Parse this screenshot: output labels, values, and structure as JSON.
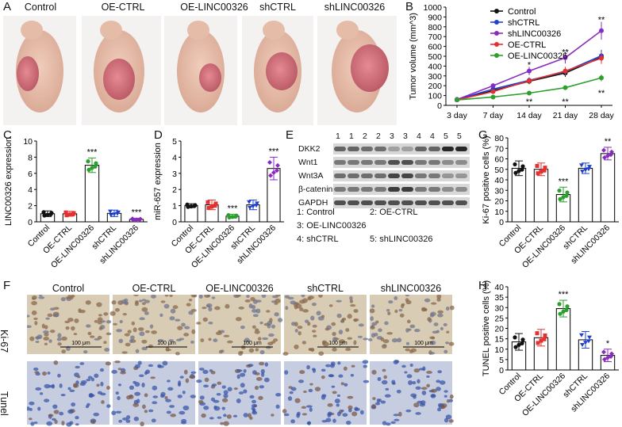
{
  "panels": {
    "A": "A",
    "B": "B",
    "C": "C",
    "D": "D",
    "E": "E",
    "F": "F",
    "G": "G",
    "H": "H"
  },
  "groups": [
    "Control",
    "OE-CTRL",
    "OE-LINC00326",
    "shCTRL",
    "shLINC00326"
  ],
  "colors": {
    "Control": "#111111",
    "OE-CTRL": "#e53030",
    "OE-LINC00326": "#2ca02c",
    "shCTRL": "#2040d0",
    "shLINC00326": "#8a2bc0"
  },
  "panelA": {
    "labels": [
      "Control",
      "OE-CTRL",
      "OE-LINC00326",
      "shCTRL",
      "shLINC00326"
    ]
  },
  "panelE": {
    "lanes": [
      "1",
      "1",
      "2",
      "2",
      "3",
      "3",
      "4",
      "4",
      "5",
      "5"
    ],
    "rows": [
      "DKK2",
      "Wnt1",
      "Wnt3A",
      "β-catenin",
      "GAPDH"
    ],
    "key": [
      "1: Control",
      "2: OE-CTRL",
      "3: OE-LINC00326",
      "4: shCTRL",
      "5: shLINC00326"
    ]
  },
  "panelF": {
    "cols": [
      "Control",
      "OE-CTRL",
      "OE-LINC00326",
      "shCTRL",
      "shLINC00326"
    ],
    "rows": [
      "Ki-67",
      "Tunel"
    ],
    "scale": "100 μm"
  },
  "chart_data": [
    {
      "id": "B",
      "type": "line",
      "ylabel": "Tumor volume (mm^3)",
      "x": [
        "3 day",
        "7 day",
        "14 day",
        "21 day",
        "28 day"
      ],
      "ylim": [
        0,
        1000
      ],
      "yticks": [
        0,
        100,
        200,
        300,
        400,
        500,
        600,
        700,
        800,
        900,
        1000
      ],
      "series": [
        {
          "name": "Control",
          "values": [
            55,
            150,
            245,
            330,
            490
          ]
        },
        {
          "name": "shCTRL",
          "values": [
            60,
            165,
            255,
            345,
            505
          ]
        },
        {
          "name": "shLINC00326",
          "values": [
            60,
            200,
            350,
            485,
            760
          ]
        },
        {
          "name": "OE-CTRL",
          "values": [
            55,
            140,
            250,
            350,
            480
          ]
        },
        {
          "name": "OE-LINC00326",
          "values": [
            55,
            85,
            125,
            180,
            280
          ]
        }
      ],
      "annotations": [
        {
          "x": "14 day",
          "y": 415,
          "text": "*"
        },
        {
          "x": "21 day",
          "y": 545,
          "text": "**"
        },
        {
          "x": "28 day",
          "y": 875,
          "text": "**"
        },
        {
          "x": "14 day",
          "y": 40,
          "text": "**"
        },
        {
          "x": "21 day",
          "y": 40,
          "text": "**"
        },
        {
          "x": "28 day",
          "y": 130,
          "text": "**"
        }
      ]
    },
    {
      "id": "C",
      "type": "bar",
      "ylabel": "LINC00326 expression",
      "categories": [
        "Control",
        "OE-CTRL",
        "OE-LINC00326",
        "shCTRL",
        "shLINC00326"
      ],
      "values": [
        1.0,
        1.0,
        7.0,
        1.05,
        0.3
      ],
      "errors": [
        0.35,
        0.3,
        0.9,
        0.4,
        0.15
      ],
      "ylim": [
        0,
        10
      ],
      "yticks": [
        0,
        2,
        4,
        6,
        8,
        10
      ],
      "sig": [
        "",
        "",
        "***",
        "",
        "***"
      ]
    },
    {
      "id": "D",
      "type": "bar",
      "ylabel": "miR-657 expression",
      "categories": [
        "Control",
        "OE-CTRL",
        "OE-LINC00326",
        "shCTRL",
        "shLINC00326"
      ],
      "values": [
        1.0,
        1.05,
        0.35,
        1.05,
        3.3
      ],
      "errors": [
        0.12,
        0.3,
        0.12,
        0.3,
        0.7
      ],
      "ylim": [
        0,
        5
      ],
      "yticks": [
        0,
        1,
        2,
        3,
        4,
        5
      ],
      "sig": [
        "",
        "",
        "***",
        "",
        "***"
      ]
    },
    {
      "id": "G",
      "type": "bar",
      "ylabel": "Ki-67 positive cells (%)",
      "categories": [
        "Control",
        "OE-CTRL",
        "OE-LINC00326",
        "shCTRL",
        "shLINC00326"
      ],
      "values": [
        51,
        50,
        26,
        51,
        65
      ],
      "errors": [
        7,
        6,
        7,
        5,
        6
      ],
      "ylim": [
        0,
        80
      ],
      "yticks": [
        0,
        10,
        20,
        30,
        40,
        50,
        60,
        70,
        80
      ],
      "sig": [
        "",
        "",
        "***",
        "",
        "**"
      ]
    },
    {
      "id": "H",
      "type": "bar",
      "ylabel": "TUNEL positive cells (%)",
      "categories": [
        "Control",
        "OE-CTRL",
        "OE-LINC00326",
        "shCTRL",
        "shLINC00326"
      ],
      "values": [
        13.5,
        15.5,
        29.5,
        14.5,
        7.0
      ],
      "errors": [
        4,
        4,
        4,
        4,
        3
      ],
      "ylim": [
        0,
        40
      ],
      "yticks": [
        0,
        5,
        10,
        15,
        20,
        25,
        30,
        35,
        40
      ],
      "sig": [
        "",
        "",
        "***",
        "",
        "*"
      ]
    }
  ]
}
